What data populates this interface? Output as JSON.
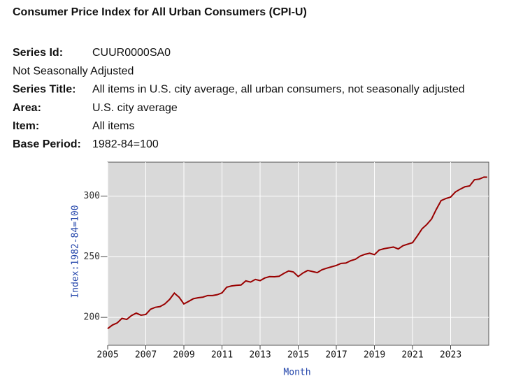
{
  "header": {
    "title": "Consumer Price Index for All Urban Consumers (CPI-U)"
  },
  "details": {
    "rows": [
      {
        "label": "Series Id:",
        "value": "CUUR0000SA0"
      },
      {
        "note": "Not Seasonally Adjusted"
      },
      {
        "label": "Series Title:",
        "value": "All items in U.S. city average, all urban consumers, not seasonally adjusted"
      },
      {
        "label": "Area:",
        "value": "U.S. city average"
      },
      {
        "label": "Item:",
        "value": "All items"
      },
      {
        "label": "Base Period:",
        "value": "1982-84=100"
      }
    ]
  },
  "chart_data": {
    "type": "line",
    "x_label": "Month",
    "y_label": "Index:1982-84=100",
    "x": [
      2005,
      2005.25,
      2005.5,
      2005.75,
      2006,
      2006.25,
      2006.5,
      2006.75,
      2007,
      2007.25,
      2007.5,
      2007.75,
      2008,
      2008.25,
      2008.5,
      2008.75,
      2009,
      2009.25,
      2009.5,
      2009.75,
      2010,
      2010.25,
      2010.5,
      2010.75,
      2011,
      2011.25,
      2011.5,
      2011.75,
      2012,
      2012.25,
      2012.5,
      2012.75,
      2013,
      2013.25,
      2013.5,
      2013.75,
      2014,
      2014.25,
      2014.5,
      2014.75,
      2015,
      2015.25,
      2015.5,
      2015.75,
      2016,
      2016.25,
      2016.5,
      2016.75,
      2017,
      2017.25,
      2017.5,
      2017.75,
      2018,
      2018.25,
      2018.5,
      2018.75,
      2019,
      2019.25,
      2019.5,
      2019.75,
      2020,
      2020.25,
      2020.5,
      2020.75,
      2021,
      2021.25,
      2021.5,
      2021.75,
      2022,
      2022.25,
      2022.5,
      2022.75,
      2023,
      2023.25,
      2023.5,
      2023.75,
      2024,
      2024.25,
      2024.5,
      2024.75,
      2024.92
    ],
    "series": [
      {
        "name": "CPI-U",
        "color": "#990000",
        "values": [
          190.7,
          193.7,
          195.4,
          199.2,
          198.3,
          201.5,
          203.5,
          201.8,
          202.4,
          206.7,
          208.3,
          208.9,
          211.1,
          214.8,
          220.0,
          216.6,
          211.1,
          213.2,
          215.4,
          216.2,
          216.7,
          218.0,
          218.0,
          218.7,
          220.2,
          224.9,
          225.9,
          226.4,
          226.7,
          230.1,
          229.1,
          231.3,
          230.3,
          232.5,
          233.6,
          233.5,
          233.9,
          236.3,
          238.3,
          237.4,
          233.7,
          236.6,
          238.7,
          237.8,
          236.9,
          239.3,
          240.6,
          241.7,
          242.8,
          244.5,
          244.8,
          246.7,
          247.9,
          250.5,
          252.0,
          252.9,
          251.7,
          255.5,
          256.6,
          257.3,
          258.0,
          256.4,
          259.1,
          260.4,
          261.6,
          267.1,
          273.0,
          276.6,
          281.1,
          289.1,
          296.3,
          298.0,
          299.2,
          303.4,
          305.7,
          307.7,
          308.4,
          313.5,
          314.0,
          315.7,
          315.6
        ]
      }
    ],
    "xlim": [
      2005,
      2025
    ],
    "ylim": [
      177,
      328
    ],
    "xticks": [
      2005,
      2007,
      2009,
      2011,
      2013,
      2015,
      2017,
      2019,
      2021,
      2023
    ],
    "yticks": [
      200,
      250,
      300
    ],
    "grid": true
  }
}
